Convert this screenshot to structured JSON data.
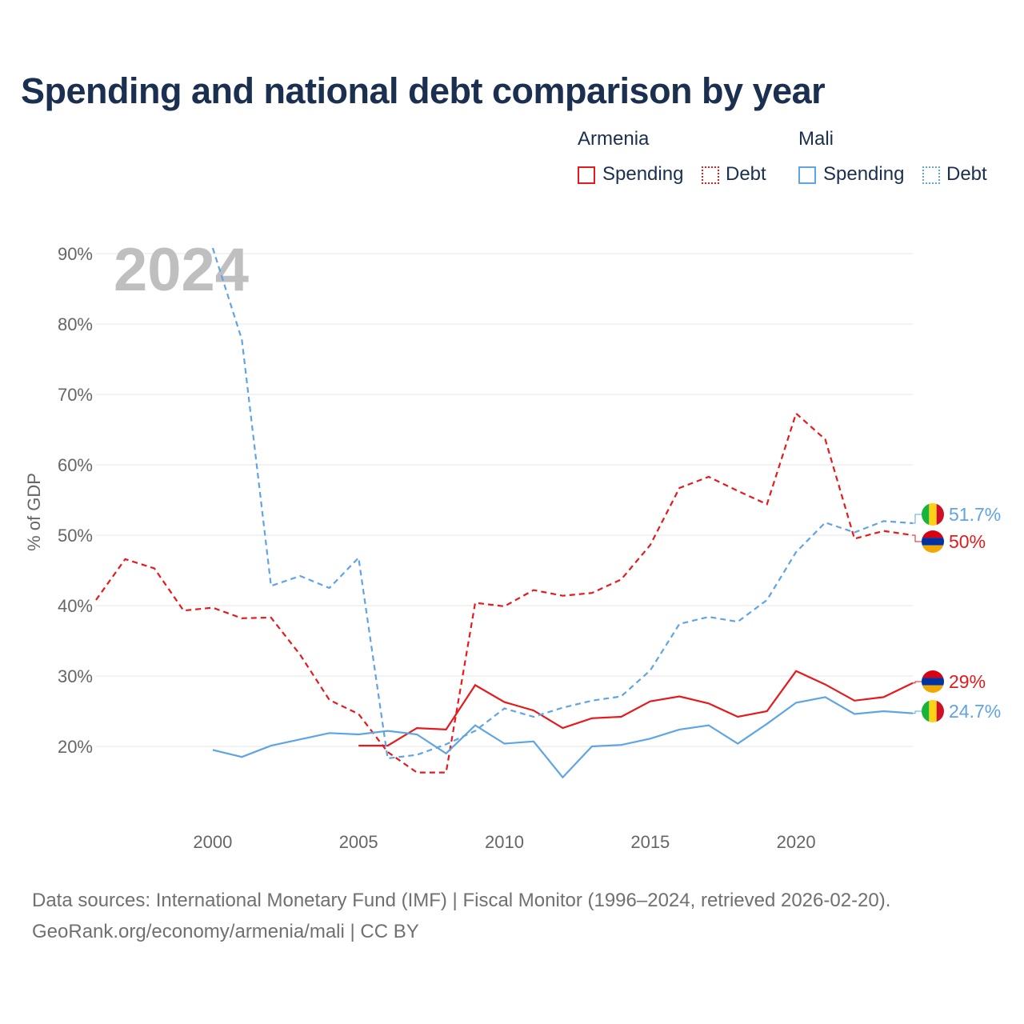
{
  "title": "Spending and national debt comparison by year",
  "legend": {
    "groups": [
      {
        "country": "Armenia",
        "color": "#e41a1c",
        "items": [
          {
            "label": "Spending",
            "style": "solid"
          },
          {
            "label": "Debt",
            "style": "dotted"
          }
        ]
      },
      {
        "country": "Mali",
        "color": "#5fa4e4",
        "items": [
          {
            "label": "Spending",
            "style": "solid"
          },
          {
            "label": "Debt",
            "style": "dotted"
          }
        ]
      }
    ]
  },
  "source_line1": "Data sources: International Monetary Fund (IMF) | Fiscal Monitor (1996–2024, retrieved 2026-02-20).",
  "source_line2": "GeoRank.org/economy/armenia/mali | CC BY",
  "chart_data": {
    "type": "line",
    "title": "Spending and national debt comparison by year",
    "ylabel": "% of GDP",
    "xlabel": "",
    "year_label": "2024",
    "xlim": [
      1996,
      2024
    ],
    "ylim": [
      10,
      92
    ],
    "y_ticks": [
      20,
      30,
      40,
      50,
      60,
      70,
      80,
      90
    ],
    "y_tick_labels": [
      "20%",
      "30%",
      "40%",
      "50%",
      "60%",
      "70%",
      "80%",
      "90%"
    ],
    "x_ticks": [
      2000,
      2005,
      2010,
      2015,
      2020
    ],
    "x_tick_labels": [
      "2000",
      "2005",
      "2010",
      "2015",
      "2020"
    ],
    "grid": true,
    "series": [
      {
        "name": "Armenia Debt",
        "country": "Armenia",
        "metric": "Debt",
        "color": "#e41a1c",
        "dash": true,
        "x": [
          1996,
          1997,
          1998,
          1999,
          2000,
          2001,
          2002,
          2003,
          2004,
          2005,
          2006,
          2007,
          2008,
          2009,
          2010,
          2011,
          2012,
          2013,
          2014,
          2015,
          2016,
          2017,
          2018,
          2019,
          2020,
          2021,
          2022,
          2023,
          2024
        ],
        "values": [
          40.8,
          46.6,
          45.3,
          39.3,
          39.7,
          38.2,
          38.3,
          33.0,
          26.6,
          24.6,
          19.2,
          16.3,
          16.3,
          40.4,
          39.9,
          42.2,
          41.4,
          41.8,
          43.7,
          48.6,
          56.7,
          58.3,
          56.3,
          54.4,
          67.3,
          63.6,
          49.5,
          50.6,
          50.0
        ]
      },
      {
        "name": "Armenia Spending",
        "country": "Armenia",
        "metric": "Spending",
        "color": "#e41a1c",
        "dash": false,
        "x": [
          2005,
          2006,
          2007,
          2008,
          2009,
          2010,
          2011,
          2012,
          2013,
          2014,
          2015,
          2016,
          2017,
          2018,
          2019,
          2020,
          2021,
          2022,
          2023,
          2024
        ],
        "values": [
          20.1,
          20.1,
          22.6,
          22.4,
          28.7,
          26.3,
          25.1,
          22.6,
          24.0,
          24.2,
          26.4,
          27.1,
          26.1,
          24.2,
          25.0,
          30.7,
          28.8,
          26.5,
          27.0,
          29.0
        ]
      },
      {
        "name": "Mali Debt",
        "country": "Mali",
        "metric": "Debt",
        "color": "#5fa4e4",
        "dash": true,
        "x": [
          2000,
          2001,
          2002,
          2003,
          2004,
          2005,
          2006,
          2007,
          2008,
          2009,
          2010,
          2011,
          2012,
          2013,
          2014,
          2015,
          2016,
          2017,
          2018,
          2019,
          2020,
          2021,
          2022,
          2023,
          2024
        ],
        "values": [
          90.8,
          77.8,
          42.8,
          44.2,
          42.5,
          46.8,
          18.3,
          18.8,
          20.3,
          22.2,
          25.4,
          24.2,
          25.5,
          26.5,
          27.1,
          30.8,
          37.4,
          38.4,
          37.7,
          40.8,
          47.6,
          51.8,
          50.4,
          52.0,
          51.7
        ]
      },
      {
        "name": "Mali Spending",
        "country": "Mali",
        "metric": "Spending",
        "color": "#5fa4e4",
        "dash": false,
        "x": [
          2000,
          2001,
          2002,
          2003,
          2004,
          2005,
          2006,
          2007,
          2008,
          2009,
          2010,
          2011,
          2012,
          2013,
          2014,
          2015,
          2016,
          2017,
          2018,
          2019,
          2020,
          2021,
          2022,
          2023,
          2024
        ],
        "values": [
          19.5,
          18.5,
          20.1,
          21.0,
          21.9,
          21.7,
          22.2,
          21.7,
          19.0,
          23.0,
          20.4,
          20.7,
          15.6,
          20.0,
          20.2,
          21.1,
          22.4,
          23.0,
          20.4,
          23.2,
          26.2,
          27.0,
          24.6,
          25.0,
          24.7
        ]
      }
    ],
    "end_labels": [
      {
        "series": "Mali Debt",
        "text": "51.7%",
        "color": "#5fa4e4",
        "flag": "mali-flag-icon"
      },
      {
        "series": "Armenia Debt",
        "text": "50%",
        "color": "#e41a1c",
        "flag": "armenia-flag-icon"
      },
      {
        "series": "Armenia Spending",
        "text": "29%",
        "color": "#e41a1c",
        "flag": "armenia-flag-icon"
      },
      {
        "series": "Mali Spending",
        "text": "24.7%",
        "color": "#5fa4e4",
        "flag": "mali-flag-icon"
      }
    ]
  }
}
